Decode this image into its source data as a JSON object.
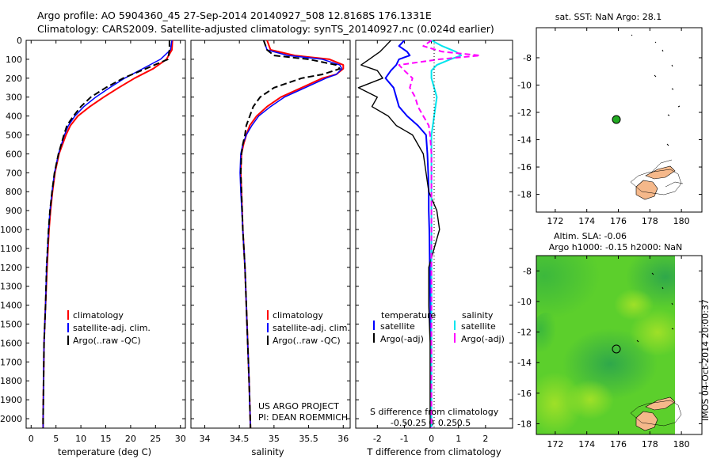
{
  "header": {
    "line1": "Argo profile: AO 5904360_45 27-Sep-2014 20140927_508 12.8168S 176.1331E",
    "line2": "Climatology: CARS2009. Satellite-adjusted climatology: synTS_20140927.nc (0.024d earlier)"
  },
  "credit": {
    "project": "US ARGO PROJECT",
    "pi": "PI: DEAN ROEMMICH",
    "stamp": "IMOS 04-Oct-2014 20:00:37"
  },
  "depth_ticks": [
    "0",
    "100",
    "200",
    "300",
    "400",
    "500",
    "600",
    "700",
    "800",
    "900",
    "1000",
    "1100",
    "1200",
    "1300",
    "1400",
    "1500",
    "1600",
    "1700",
    "1800",
    "1900",
    "2000"
  ],
  "colors": {
    "climatology": "#ff0000",
    "satellite": "#0000ff",
    "argo": "#000000",
    "sal_sat": "#00e5ee",
    "sal_argo": "#ff00ff",
    "land": "#f5b88a",
    "marker": "#22aa22"
  },
  "chart_data": [
    {
      "type": "line",
      "xlabel": "temperature (deg C)",
      "ylabel": "",
      "xlim": [
        -1,
        31
      ],
      "ylim": [
        2050,
        0
      ],
      "xticks": [
        "0",
        "5",
        "10",
        "15",
        "20",
        "25",
        "30"
      ],
      "legend": [
        "climatology",
        "satellite-adj. clim.",
        "Argo(..raw -QC)"
      ],
      "depth": [
        0,
        50,
        100,
        150,
        200,
        250,
        300,
        350,
        400,
        450,
        500,
        600,
        700,
        800,
        900,
        1000,
        1200,
        1400,
        1600,
        1800,
        2000,
        2050
      ],
      "series": [
        {
          "name": "climatology",
          "values": [
            28.4,
            28.3,
            27.2,
            24.5,
            20.8,
            17.6,
            14.6,
            11.8,
            9.4,
            7.9,
            7.0,
            5.6,
            4.8,
            4.3,
            3.9,
            3.6,
            3.2,
            2.9,
            2.6,
            2.5,
            2.4,
            2.4
          ]
        },
        {
          "name": "satellite-adj. clim.",
          "values": [
            28.3,
            28.0,
            26.0,
            22.4,
            18.8,
            15.8,
            13.0,
            10.6,
            8.8,
            7.5,
            6.7,
            5.5,
            4.7,
            4.2,
            3.8,
            3.5,
            3.1,
            2.9,
            2.6,
            2.5,
            2.4,
            2.4
          ]
        },
        {
          "name": "Argo(..raw -QC)",
          "values": [
            27.8,
            27.8,
            27.5,
            23.0,
            18.5,
            15.0,
            12.0,
            10.0,
            8.5,
            7.2,
            6.6,
            5.5,
            4.7,
            4.2,
            3.8,
            3.5,
            3.1,
            2.9,
            2.6,
            2.5,
            2.4,
            2.4
          ]
        }
      ]
    },
    {
      "type": "line",
      "xlabel": "salinity",
      "ylabel": "",
      "xlim": [
        33.8,
        36.1
      ],
      "ylim": [
        2050,
        0
      ],
      "xticks": [
        "34",
        "34.5",
        "35",
        "35.5",
        "36"
      ],
      "legend": [
        "climatology",
        "satellite-adj. clim.",
        "Argo(..raw -QC)"
      ],
      "depth": [
        0,
        50,
        80,
        100,
        130,
        150,
        180,
        200,
        250,
        300,
        350,
        400,
        450,
        500,
        550,
        600,
        700,
        800,
        1000,
        1200,
        1500,
        1800,
        2050
      ],
      "series": [
        {
          "name": "climatology",
          "values": [
            34.9,
            34.95,
            35.3,
            35.8,
            36.0,
            36.0,
            35.9,
            35.7,
            35.4,
            35.1,
            34.9,
            34.75,
            34.65,
            34.6,
            34.56,
            34.53,
            34.52,
            34.53,
            34.55,
            34.58,
            34.61,
            34.64,
            34.66
          ]
        },
        {
          "name": "satellite-adj. clim.",
          "values": [
            34.85,
            34.9,
            35.2,
            35.7,
            35.95,
            35.98,
            35.9,
            35.75,
            35.45,
            35.15,
            34.95,
            34.78,
            34.68,
            34.6,
            34.55,
            34.52,
            34.51,
            34.52,
            34.55,
            34.58,
            34.61,
            34.64,
            34.66
          ]
        },
        {
          "name": "Argo(..raw -QC)",
          "values": [
            34.85,
            34.9,
            35.0,
            35.5,
            35.9,
            35.95,
            35.7,
            35.4,
            35.0,
            34.8,
            34.7,
            34.65,
            34.6,
            34.58,
            34.55,
            34.53,
            34.52,
            34.53,
            34.55,
            34.58,
            34.61,
            34.64,
            34.66
          ]
        }
      ]
    },
    {
      "type": "line",
      "xlabel": "T difference from climatology",
      "xlabel_top": "S difference from climatology",
      "xlim": [
        -2.8,
        3.0
      ],
      "ylim": [
        2050,
        0
      ],
      "xticks": [
        "-2",
        "-1",
        "0",
        "1",
        "2"
      ],
      "xticks_top": [
        "-0.5",
        "-0.25",
        "0",
        "0.25",
        "0.5"
      ],
      "legend_titles": [
        "temperature",
        "salinity"
      ],
      "legend": [
        "satellite",
        "Argo(-adj)",
        "satellite",
        "Argo(-adj)"
      ],
      "depth": [
        0,
        30,
        60,
        80,
        100,
        130,
        160,
        200,
        250,
        300,
        350,
        400,
        450,
        500,
        600,
        700,
        800,
        900,
        1000,
        1200,
        1400,
        1600,
        1800,
        2050
      ],
      "series": [
        {
          "name": "temperature satellite",
          "values": [
            -1.0,
            -1.2,
            -0.9,
            -0.8,
            -1.2,
            -1.3,
            -1.5,
            -1.7,
            -1.4,
            -1.3,
            -1.2,
            -0.9,
            -0.5,
            -0.2,
            -0.15,
            -0.12,
            -0.1,
            -0.1,
            -0.08,
            -0.06,
            -0.04,
            -0.03,
            -0.02,
            -0.02
          ]
        },
        {
          "name": "temperature Argo(-adj)",
          "values": [
            -1.5,
            -1.7,
            -1.9,
            -2.1,
            -2.3,
            -2.6,
            -2.0,
            -1.8,
            -2.7,
            -2.0,
            -2.2,
            -1.6,
            -1.3,
            -0.7,
            -0.3,
            -0.2,
            -0.1,
            0.2,
            0.3,
            -0.1,
            -0.1,
            -0.05,
            -0.05,
            -0.05
          ]
        },
        {
          "name": "salinity satellite",
          "values": [
            0.0,
            0.4,
            0.9,
            1.1,
            0.7,
            0.2,
            0.0,
            0.0,
            0.1,
            0.2,
            0.15,
            0.1,
            0.05,
            0.0,
            0.0,
            0.0,
            0.0,
            0.0,
            0.0,
            0.0,
            0.0,
            0.0,
            0.0,
            0.0
          ]
        },
        {
          "name": "salinity Argo(-adj)",
          "values": [
            0.0,
            -0.3,
            0.4,
            1.8,
            0.3,
            -1.2,
            -1.0,
            -0.7,
            -0.8,
            -0.6,
            -0.5,
            -0.3,
            -0.1,
            -0.05,
            0.0,
            0.0,
            0.0,
            0.0,
            0.0,
            0.0,
            0.0,
            0.0,
            0.0,
            0.0
          ]
        }
      ]
    },
    {
      "type": "scatter",
      "title": "sat. SST: NaN Argo: 28.1",
      "xlim": [
        170.8,
        181.3
      ],
      "ylim": [
        -19.3,
        -5.8
      ],
      "xticks": [
        "172",
        "174",
        "176",
        "178",
        "180"
      ],
      "yticks": [
        "-8",
        "-10",
        "-12",
        "-14",
        "-16",
        "-18"
      ],
      "points": [
        {
          "x": 176.13,
          "y": -12.82
        }
      ]
    },
    {
      "type": "heatmap",
      "title": "Altim. SLA: -0.06",
      "subtitle": "Argo h1000: -0.15 h2000: NaN",
      "xlim": [
        170.8,
        181.3
      ],
      "ylim": [
        -18.7,
        -7.0
      ],
      "xticks": [
        "172",
        "174",
        "176",
        "178",
        "180"
      ],
      "yticks": [
        "-8",
        "-10",
        "-12",
        "-14",
        "-16",
        "-18"
      ],
      "points": [
        {
          "x": 176.13,
          "y": -12.82
        }
      ]
    }
  ]
}
